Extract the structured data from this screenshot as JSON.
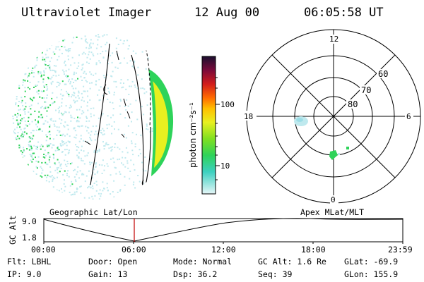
{
  "header": {
    "instrument": "Ultraviolet Imager",
    "date": "12 Aug 00",
    "time": "06:05:58 UT"
  },
  "colorbar": {
    "label": "photon cm⁻²s⁻¹",
    "ticks": [
      "100",
      "10"
    ],
    "scale": "log"
  },
  "polar_plot": {
    "mlt_labels": [
      "12",
      "18",
      "6",
      "0"
    ],
    "lat_labels": [
      "60",
      "70",
      "80"
    ]
  },
  "timeline": {
    "left_title": "Geographic Lat/Lon",
    "right_title": "Apex MLat/MLT",
    "axis_label": "GC Alt",
    "y_ticks": [
      "9.0",
      "1.8"
    ],
    "x_ticks": [
      "00:00",
      "06:00",
      "12:00",
      "18:00",
      "23:59"
    ],
    "current_time_marker": "06:05"
  },
  "info": {
    "flt": "Flt: LBHL",
    "ip": "IP:  9.0",
    "door": "Door: Open",
    "gain": "Gain: 13",
    "mode": "Mode: Normal",
    "dsp": "Dsp:    36.2",
    "gc_alt": "GC Alt: 1.6 Re",
    "seq": "Seq: 39",
    "glat": "GLat: -69.9",
    "glon": "GLon: 155.9"
  },
  "colors": {
    "noise": "#bfe9ee",
    "green": "#2ed35a",
    "yellow": "#e8f020",
    "marker": "#c00000"
  }
}
